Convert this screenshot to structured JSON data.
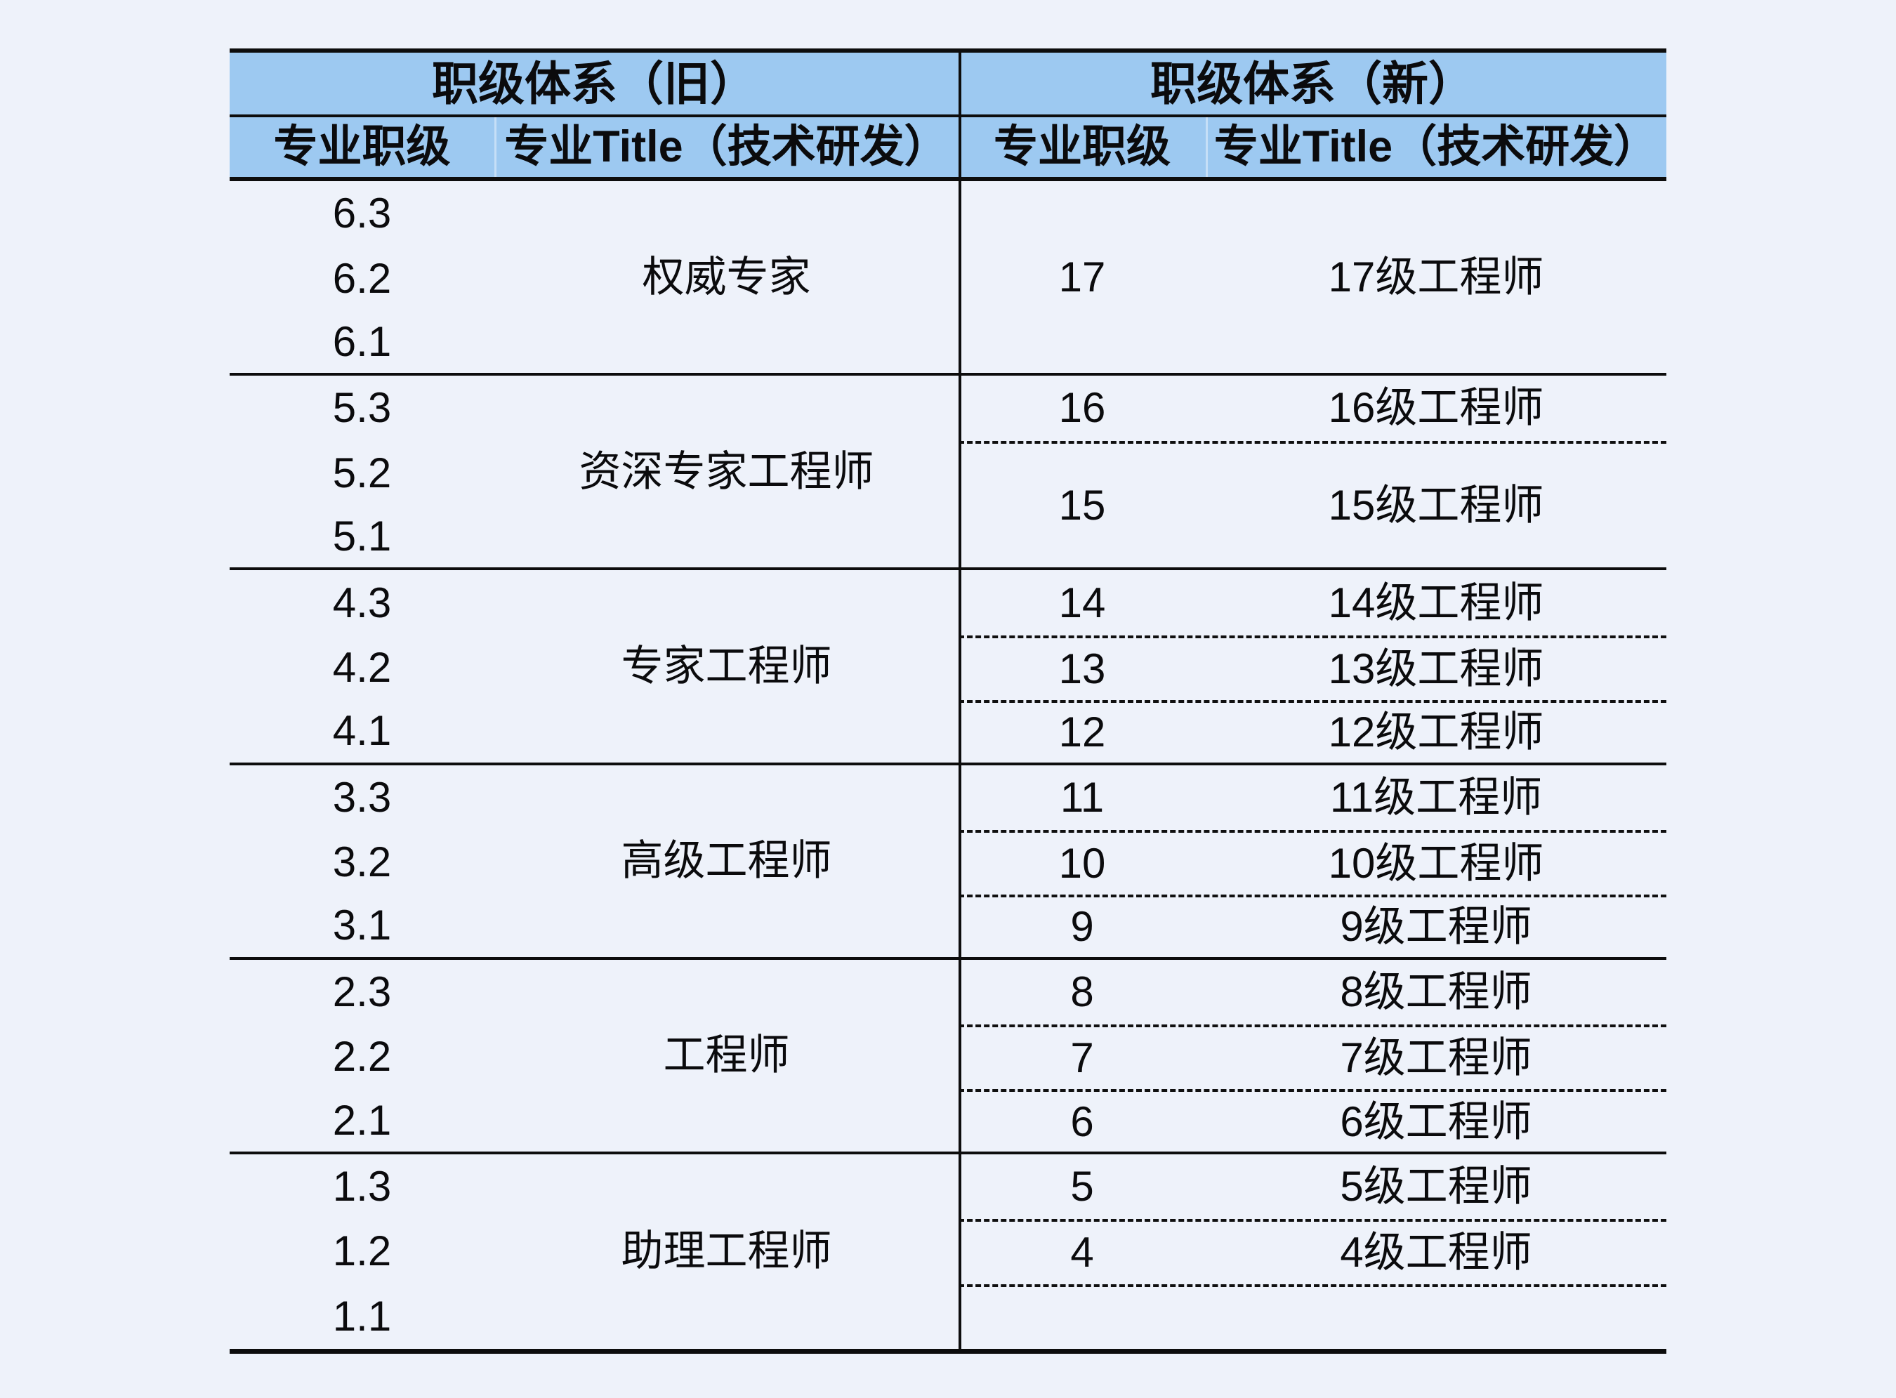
{
  "colors": {
    "page_background": "#eef2fa",
    "header_fill": "#9dc9f1",
    "grid_line": "#0d0d0d",
    "text": "#0b0b0d"
  },
  "table": {
    "headers": {
      "old_system": "职级体系（旧）",
      "new_system": "职级体系（新）",
      "old_sub_level": "专业职级",
      "old_sub_title": "专业Title（技术研发）",
      "new_sub_level": "专业职级",
      "new_sub_title": "专业Title（技术研发）"
    },
    "old_levels": [
      "6.3",
      "6.2",
      "6.1",
      "5.3",
      "5.2",
      "5.1",
      "4.3",
      "4.2",
      "4.1",
      "3.3",
      "3.2",
      "3.1",
      "2.3",
      "2.2",
      "2.1",
      "1.3",
      "1.2",
      "1.1"
    ],
    "old_titles": [
      "权威专家",
      "资深专家工程师",
      "专家工程师",
      "高级工程师",
      "工程师",
      "助理工程师"
    ],
    "new_cells": [
      {
        "level": "17",
        "title": "17级工程师"
      },
      {
        "level": "16",
        "title": "16级工程师"
      },
      {
        "level": "15",
        "title": "15级工程师"
      },
      {
        "level": "14",
        "title": "14级工程师"
      },
      {
        "level": "13",
        "title": "13级工程师"
      },
      {
        "level": "12",
        "title": "12级工程师"
      },
      {
        "level": "11",
        "title": "11级工程师"
      },
      {
        "level": "10",
        "title": "10级工程师"
      },
      {
        "level": "9",
        "title": "9级工程师"
      },
      {
        "level": "8",
        "title": "8级工程师"
      },
      {
        "level": "7",
        "title": "7级工程师"
      },
      {
        "level": "6",
        "title": "6级工程师"
      },
      {
        "level": "5",
        "title": "5级工程师"
      },
      {
        "level": "4",
        "title": "4级工程师"
      }
    ]
  }
}
